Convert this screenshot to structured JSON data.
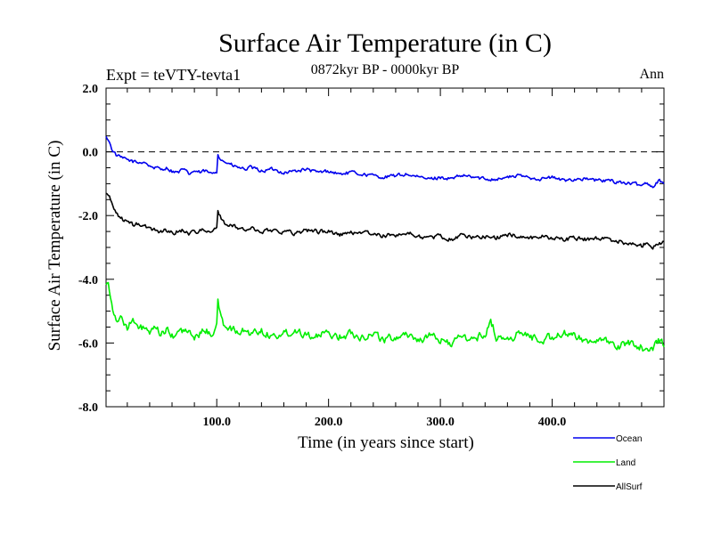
{
  "chart_data": {
    "type": "line",
    "title": "Surface Air Temperature (in C)",
    "subtitle": "0872kyr BP - 0000kyr BP",
    "left_annotation": "Expt = teVTY-tevta1",
    "right_annotation": "Ann",
    "xlabel": "Time (in years since start)",
    "ylabel": "Surface Air Temperature (in C)",
    "xlim": [
      1,
      500
    ],
    "ylim": [
      -8,
      2
    ],
    "x_ticks": [
      {
        "value": 100,
        "label": "100.0"
      },
      {
        "value": 200,
        "label": "200.0"
      },
      {
        "value": 300,
        "label": "300.0"
      },
      {
        "value": 400,
        "label": "400.0"
      }
    ],
    "y_ticks": [
      {
        "value": 2,
        "label": "2.0"
      },
      {
        "value": 0,
        "label": "0.0"
      },
      {
        "value": -2,
        "label": "-2.0"
      },
      {
        "value": -4,
        "label": "-4.0"
      },
      {
        "value": -6,
        "label": "-6.0"
      },
      {
        "value": -8,
        "label": "-8.0"
      }
    ],
    "reference_line": {
      "y": 0,
      "style": "dashed"
    },
    "series": [
      {
        "name": "Ocean",
        "color": "#0000ee",
        "x": [
          1,
          3,
          6,
          10,
          15,
          20,
          25,
          30,
          35,
          40,
          45,
          50,
          55,
          60,
          65,
          70,
          75,
          80,
          85,
          90,
          95,
          100,
          101,
          103,
          106,
          110,
          115,
          120,
          125,
          130,
          140,
          150,
          160,
          170,
          180,
          190,
          200,
          210,
          220,
          230,
          240,
          250,
          260,
          270,
          280,
          290,
          300,
          310,
          320,
          330,
          340,
          350,
          360,
          370,
          380,
          390,
          400,
          410,
          420,
          430,
          440,
          450,
          460,
          470,
          480,
          485,
          490,
          495,
          500
        ],
        "values": [
          0.45,
          0.4,
          0.1,
          -0.1,
          -0.2,
          -0.25,
          -0.3,
          -0.35,
          -0.3,
          -0.45,
          -0.5,
          -0.55,
          -0.5,
          -0.6,
          -0.65,
          -0.55,
          -0.7,
          -0.6,
          -0.65,
          -0.6,
          -0.7,
          -0.6,
          -0.05,
          -0.2,
          -0.3,
          -0.35,
          -0.45,
          -0.5,
          -0.55,
          -0.5,
          -0.6,
          -0.55,
          -0.65,
          -0.6,
          -0.55,
          -0.65,
          -0.6,
          -0.7,
          -0.65,
          -0.7,
          -0.75,
          -0.8,
          -0.75,
          -0.7,
          -0.8,
          -0.85,
          -0.8,
          -0.85,
          -0.75,
          -0.8,
          -0.85,
          -0.85,
          -0.8,
          -0.75,
          -0.8,
          -0.85,
          -0.8,
          -0.9,
          -0.85,
          -0.85,
          -0.9,
          -0.9,
          -0.95,
          -1.0,
          -1.05,
          -0.95,
          -1.1,
          -0.9,
          -0.95
        ]
      },
      {
        "name": "Land",
        "color": "#00ee00",
        "x": [
          1,
          3,
          5,
          8,
          12,
          15,
          20,
          25,
          30,
          35,
          40,
          45,
          50,
          55,
          60,
          65,
          70,
          75,
          80,
          85,
          90,
          95,
          100,
          101,
          103,
          106,
          110,
          115,
          120,
          125,
          130,
          140,
          150,
          160,
          170,
          180,
          190,
          200,
          210,
          220,
          230,
          240,
          250,
          260,
          270,
          280,
          290,
          300,
          310,
          320,
          330,
          340,
          345,
          350,
          360,
          370,
          380,
          390,
          400,
          410,
          420,
          430,
          440,
          450,
          460,
          470,
          480,
          485,
          490,
          495,
          500
        ],
        "values": [
          -4.1,
          -4.0,
          -4.6,
          -5.0,
          -5.4,
          -5.2,
          -5.5,
          -5.3,
          -5.6,
          -5.5,
          -5.7,
          -5.6,
          -5.7,
          -5.6,
          -5.8,
          -5.7,
          -5.6,
          -5.7,
          -5.8,
          -5.7,
          -5.6,
          -5.7,
          -5.5,
          -4.6,
          -5.1,
          -5.4,
          -5.5,
          -5.6,
          -5.7,
          -5.6,
          -5.7,
          -5.6,
          -5.8,
          -5.7,
          -5.6,
          -5.7,
          -5.8,
          -5.7,
          -5.8,
          -5.7,
          -5.8,
          -5.7,
          -5.9,
          -5.8,
          -5.7,
          -5.9,
          -5.8,
          -5.9,
          -6.0,
          -5.8,
          -5.9,
          -5.7,
          -5.3,
          -5.8,
          -5.9,
          -5.7,
          -5.8,
          -5.9,
          -5.8,
          -5.7,
          -5.8,
          -5.9,
          -5.9,
          -6.0,
          -6.1,
          -6.0,
          -6.1,
          -6.3,
          -6.2,
          -5.9,
          -6.0
        ]
      },
      {
        "name": "AllSurf",
        "color": "#000000",
        "x": [
          1,
          3,
          6,
          10,
          15,
          20,
          25,
          30,
          35,
          40,
          45,
          50,
          55,
          60,
          65,
          70,
          75,
          80,
          85,
          90,
          95,
          100,
          101,
          103,
          106,
          110,
          115,
          120,
          125,
          130,
          140,
          150,
          160,
          170,
          180,
          190,
          200,
          210,
          220,
          230,
          240,
          250,
          260,
          270,
          280,
          290,
          300,
          310,
          320,
          330,
          340,
          350,
          360,
          370,
          380,
          390,
          400,
          410,
          420,
          430,
          440,
          450,
          460,
          470,
          480,
          485,
          490,
          495,
          500
        ],
        "values": [
          -1.3,
          -1.35,
          -1.6,
          -1.9,
          -2.1,
          -2.2,
          -2.3,
          -2.25,
          -2.35,
          -2.4,
          -2.45,
          -2.5,
          -2.45,
          -2.55,
          -2.5,
          -2.45,
          -2.55,
          -2.5,
          -2.45,
          -2.5,
          -2.55,
          -2.4,
          -1.8,
          -2.0,
          -2.2,
          -2.3,
          -2.35,
          -2.4,
          -2.45,
          -2.4,
          -2.5,
          -2.45,
          -2.5,
          -2.55,
          -2.45,
          -2.5,
          -2.5,
          -2.6,
          -2.55,
          -2.5,
          -2.6,
          -2.65,
          -2.6,
          -2.55,
          -2.65,
          -2.7,
          -2.65,
          -2.75,
          -2.6,
          -2.7,
          -2.65,
          -2.7,
          -2.6,
          -2.65,
          -2.7,
          -2.65,
          -2.7,
          -2.75,
          -2.7,
          -2.75,
          -2.7,
          -2.75,
          -2.8,
          -2.9,
          -2.95,
          -2.8,
          -3.0,
          -2.85,
          -2.85
        ]
      }
    ]
  }
}
